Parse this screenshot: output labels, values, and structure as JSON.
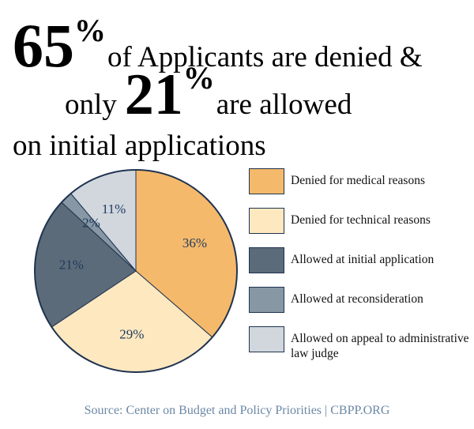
{
  "headline": {
    "line1": {
      "number": "65",
      "percent": "%",
      "text": "of Applicants are denied &"
    },
    "line2": {
      "lead": "only",
      "number": "21",
      "percent": "%",
      "text": "are allowed"
    },
    "line3": "on initial applications"
  },
  "chart_data": {
    "type": "pie",
    "categories": [
      "Denied for medical reasons",
      "Denied for technical reasons",
      "Allowed at initial application",
      "Allowed at reconsideration",
      "Allowed on appeal to administrative law judge"
    ],
    "values": [
      36,
      29,
      21,
      2,
      11
    ],
    "value_labels": [
      "36%",
      "29%",
      "21%",
      "2%",
      "11%"
    ],
    "colors": [
      "#f5b96b",
      "#fde8c0",
      "#5b6b79",
      "#8797a4",
      "#d1d7dd"
    ]
  },
  "source": "Source: Center on Budget and Policy Priorities | CBPP.ORG"
}
